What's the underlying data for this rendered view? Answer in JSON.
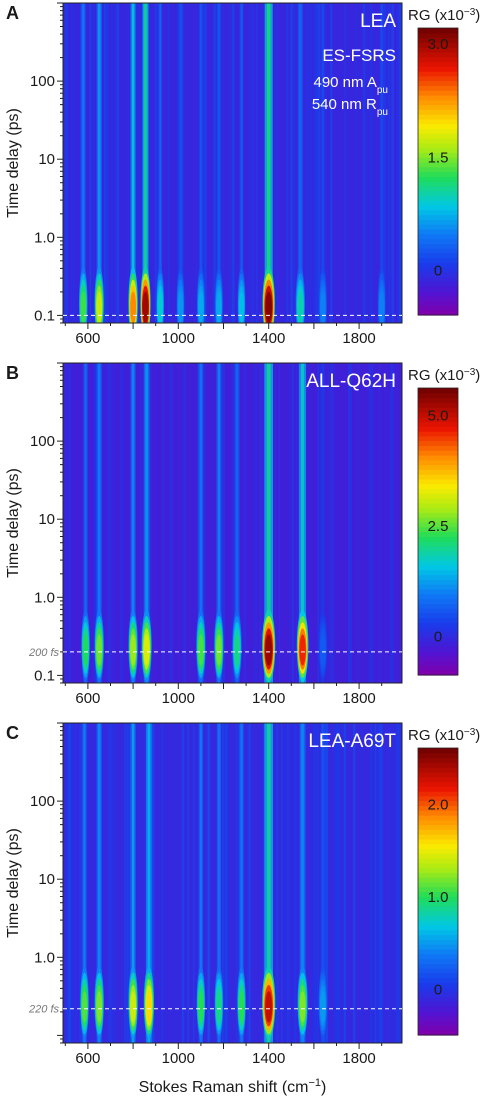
{
  "figure": {
    "xlabel_main": "Stokes Raman shift (cm",
    "xlabel_sup": "−1",
    "xlabel_close": ")"
  },
  "chart_data": [
    {
      "type": "heatmap",
      "panel_letter": "A",
      "sample": "LEA",
      "annotation_lines": [
        "ES-FSRS"
      ],
      "annotation_sub_lines": [
        {
          "main": "490 nm  A",
          "sub": "pu"
        },
        {
          "main": "540 nm  R",
          "sub": "pu"
        }
      ],
      "ylabel": "Time delay (ps)",
      "yscale": "log",
      "ylim": [
        0.08,
        1000
      ],
      "y_ticks": [
        0.1,
        1.0,
        10,
        100
      ],
      "y_tick_labels": [
        "0.1",
        "1.0",
        "10",
        "100"
      ],
      "xlim": [
        490,
        1990
      ],
      "x_ticks": [
        600,
        1000,
        1400,
        1800
      ],
      "x_tick_labels": [
        "600",
        "1000",
        "1400",
        "1800"
      ],
      "x_minor_ticks": [
        800,
        1200,
        1600
      ],
      "dashed_line_ps": 0.1,
      "dashed_line_label": "",
      "colorbar": {
        "label_main": "RG (x10",
        "label_sup": "−3",
        "label_close": ")",
        "min": -0.6,
        "max": 3.2,
        "ticks": [
          0,
          1.5,
          3.0
        ],
        "tick_labels": [
          "0",
          "1.5",
          "3.0"
        ]
      },
      "peaks": [
        {
          "x": 580,
          "amp": 1.3,
          "w": 12
        },
        {
          "x": 650,
          "amp": 1.7,
          "w": 14
        },
        {
          "x": 800,
          "amp": 2.3,
          "w": 14
        },
        {
          "x": 855,
          "amp": 3.0,
          "w": 16
        },
        {
          "x": 920,
          "amp": 0.9,
          "w": 10
        },
        {
          "x": 1010,
          "amp": 0.6,
          "w": 10
        },
        {
          "x": 1100,
          "amp": 0.7,
          "w": 10
        },
        {
          "x": 1180,
          "amp": 0.7,
          "w": 10
        },
        {
          "x": 1280,
          "amp": 0.8,
          "w": 10
        },
        {
          "x": 1400,
          "amp": 3.1,
          "w": 22
        },
        {
          "x": 1540,
          "amp": 1.0,
          "w": 14
        },
        {
          "x": 1640,
          "amp": 0.5,
          "w": 10
        },
        {
          "x": 1900,
          "amp": 0.5,
          "w": 10
        }
      ]
    },
    {
      "type": "heatmap",
      "panel_letter": "B",
      "sample": "ALL-Q62H",
      "annotation_lines": [],
      "annotation_sub_lines": [],
      "ylabel": "Time delay (ps)",
      "yscale": "log",
      "ylim": [
        0.08,
        1000
      ],
      "y_ticks": [
        0.1,
        1.0,
        10,
        100
      ],
      "y_tick_labels": [
        "0.1",
        "1.0",
        "10",
        "100"
      ],
      "xlim": [
        490,
        1990
      ],
      "x_ticks": [
        600,
        1000,
        1400,
        1800
      ],
      "x_tick_labels": [
        "600",
        "1000",
        "1400",
        "1800"
      ],
      "x_minor_ticks": [
        800,
        1200,
        1600
      ],
      "dashed_line_ps": 0.2,
      "dashed_line_label": "200 fs",
      "colorbar": {
        "label_main": "RG (x10",
        "label_sup": "−3",
        "label_close": ")",
        "min": -0.9,
        "max": 5.6,
        "ticks": [
          0,
          2.5,
          5.0
        ],
        "tick_labels": [
          "0",
          "2.5",
          "5.0"
        ]
      },
      "peaks": [
        {
          "x": 590,
          "amp": 2.2,
          "w": 12
        },
        {
          "x": 650,
          "amp": 2.6,
          "w": 14
        },
        {
          "x": 800,
          "amp": 2.8,
          "w": 14
        },
        {
          "x": 860,
          "amp": 3.2,
          "w": 16
        },
        {
          "x": 1100,
          "amp": 2.4,
          "w": 14
        },
        {
          "x": 1180,
          "amp": 2.6,
          "w": 14
        },
        {
          "x": 1260,
          "amp": 2.0,
          "w": 14
        },
        {
          "x": 1400,
          "amp": 5.3,
          "w": 24
        },
        {
          "x": 1550,
          "amp": 4.6,
          "w": 20
        },
        {
          "x": 1640,
          "amp": 0.6,
          "w": 12
        }
      ]
    },
    {
      "type": "heatmap",
      "panel_letter": "C",
      "sample": "LEA-A69T",
      "annotation_lines": [],
      "annotation_sub_lines": [],
      "ylabel": "Time delay (ps)",
      "yscale": "log",
      "ylim": [
        0.08,
        1000
      ],
      "y_ticks": [
        1.0,
        10,
        100
      ],
      "y_tick_labels": [
        "1.0",
        "10",
        "100"
      ],
      "xlim": [
        490,
        1990
      ],
      "x_ticks": [
        600,
        1000,
        1400,
        1800
      ],
      "x_tick_labels": [
        "600",
        "1000",
        "1400",
        "1800"
      ],
      "x_minor_ticks": [
        800,
        1200,
        1600
      ],
      "dashed_line_ps": 0.22,
      "dashed_line_label": "220 fs",
      "colorbar": {
        "label_main": "RG (x10",
        "label_sup": "−3",
        "label_close": ")",
        "min": -0.5,
        "max": 2.6,
        "ticks": [
          0,
          1.0,
          2.0
        ],
        "tick_labels": [
          "0",
          "1.0",
          "2.0"
        ]
      },
      "peaks": [
        {
          "x": 585,
          "amp": 1.1,
          "w": 12
        },
        {
          "x": 650,
          "amp": 1.2,
          "w": 14
        },
        {
          "x": 800,
          "amp": 1.4,
          "w": 14
        },
        {
          "x": 870,
          "amp": 1.6,
          "w": 16
        },
        {
          "x": 1100,
          "amp": 1.0,
          "w": 12
        },
        {
          "x": 1180,
          "amp": 0.9,
          "w": 12
        },
        {
          "x": 1280,
          "amp": 1.0,
          "w": 12
        },
        {
          "x": 1400,
          "amp": 2.3,
          "w": 24
        },
        {
          "x": 1550,
          "amp": 1.2,
          "w": 16
        },
        {
          "x": 1640,
          "amp": 0.5,
          "w": 12
        }
      ]
    }
  ]
}
